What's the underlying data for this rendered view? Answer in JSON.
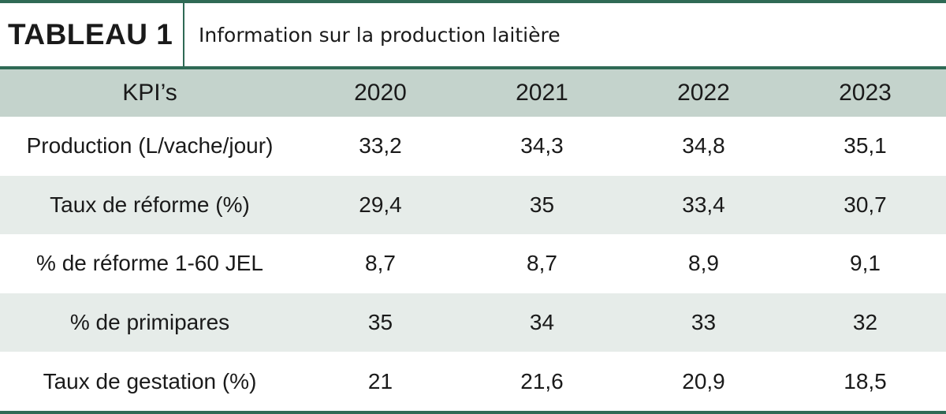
{
  "title": {
    "label": "TABLEAU 1",
    "text": "Information sur la production laitière"
  },
  "table": {
    "headers": [
      "KPI’s",
      "2020",
      "2021",
      "2022",
      "2023"
    ],
    "rows": [
      [
        "Production (L/vache/jour)",
        "33,2",
        "34,3",
        "34,8",
        "35,1"
      ],
      [
        "Taux de réforme (%)",
        "29,4",
        "35",
        "33,4",
        "30,7"
      ],
      [
        "% de réforme 1-60 JEL",
        "8,7",
        "8,7",
        "8,9",
        "9,1"
      ],
      [
        "% de primipares",
        "35",
        "34",
        "33",
        "32"
      ],
      [
        "Taux de gestation (%)",
        "21",
        "21,6",
        "20,9",
        "18,5"
      ]
    ]
  },
  "colors": {
    "accent": "#2f6a55",
    "header_bg": "#c4d3cc",
    "alt_row_bg": "#e6ece9"
  }
}
